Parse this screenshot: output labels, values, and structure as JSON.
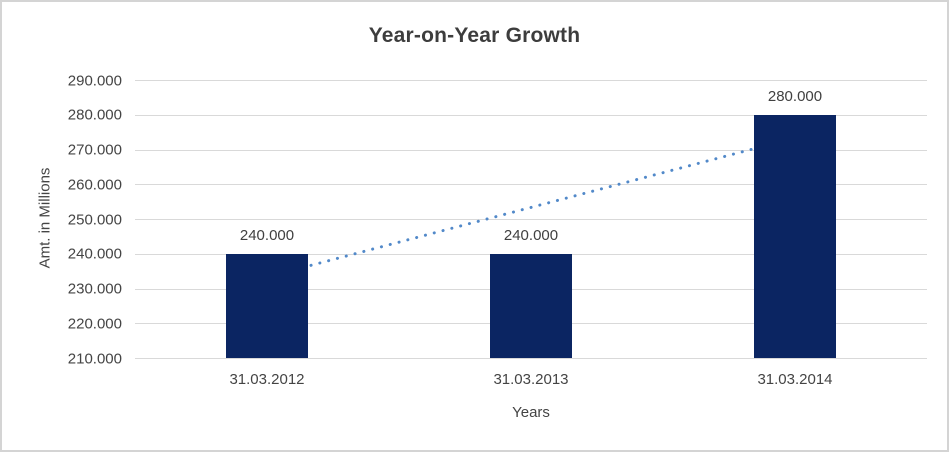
{
  "chart_data": {
    "type": "bar",
    "title": "Year-on-Year Growth",
    "xlabel": "Years",
    "ylabel": "Amt. in Millions",
    "categories": [
      "31.03.2012",
      "31.03.2013",
      "31.03.2014"
    ],
    "values": [
      240000,
      240000,
      280000
    ],
    "value_labels": [
      "240.000",
      "240.000",
      "280.000"
    ],
    "ylim": [
      210000,
      290000
    ],
    "ytick_values": [
      290000,
      280000,
      270000,
      260000,
      250000,
      240000,
      230000,
      220000,
      210000
    ],
    "ytick_labels": [
      "290.000",
      "280.000",
      "270.000",
      "260.000",
      "250.000",
      "240.000",
      "230.000",
      "220.000",
      "210.000"
    ],
    "grid": true,
    "legend": false,
    "trendline": {
      "type": "linear",
      "style": "dotted",
      "start_value": 233333,
      "end_value": 273333
    },
    "colors": {
      "bar": "#0b2562",
      "trendline": "#5289c9",
      "gridline": "#d9d9d9",
      "title_text": "#3d3d3d",
      "axis_text": "#444444",
      "data_label_text": "#404040"
    }
  }
}
